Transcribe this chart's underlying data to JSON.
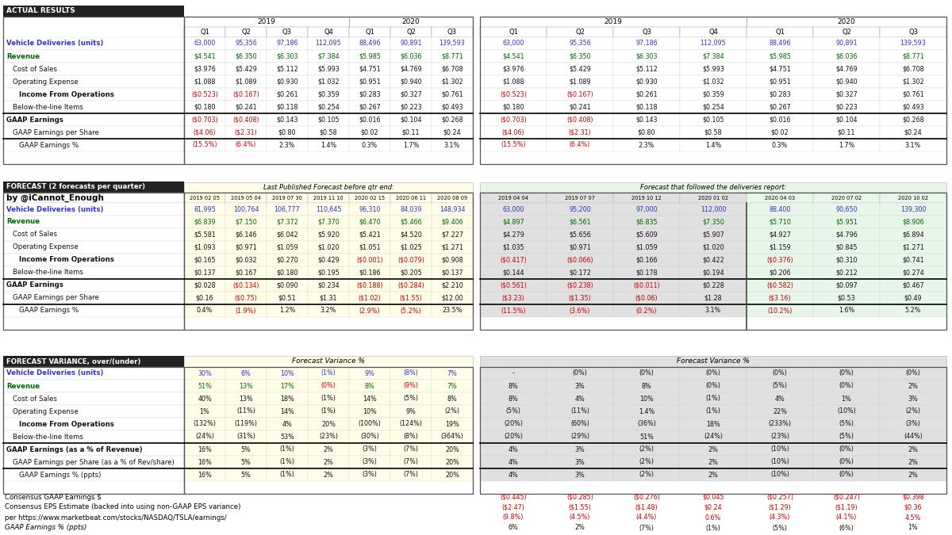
{
  "actual_rows": [
    {
      "label": "Vehicle Deliveries (units)",
      "lcolor": "blue",
      "bold": true,
      "indent": 0,
      "vals": [
        "63,000",
        "95,356",
        "97,186",
        "112,095",
        "88,496",
        "90,891",
        "139,593"
      ],
      "vcolors": [
        "blue",
        "blue",
        "blue",
        "blue",
        "blue",
        "blue",
        "blue"
      ]
    },
    {
      "label": "Revenue",
      "lcolor": "green",
      "bold": true,
      "indent": 0,
      "vals": [
        "$4.541",
        "$6.350",
        "$6.303",
        "$7.384",
        "$5.985",
        "$6.036",
        "$8.771"
      ],
      "vcolors": [
        "green",
        "green",
        "green",
        "green",
        "green",
        "green",
        "green"
      ]
    },
    {
      "label": "Cost of Sales",
      "lcolor": "black",
      "bold": false,
      "indent": 1,
      "vals": [
        "$3.976",
        "$5.429",
        "$5.112",
        "$5.993",
        "$4.751",
        "$4.769",
        "$6.708"
      ],
      "vcolors": [
        "black",
        "black",
        "black",
        "black",
        "black",
        "black",
        "black"
      ]
    },
    {
      "label": "Operating Expense",
      "lcolor": "black",
      "bold": false,
      "indent": 1,
      "vals": [
        "$1.088",
        "$1.089",
        "$0.930",
        "$1.032",
        "$0.951",
        "$0.940",
        "$1.302"
      ],
      "vcolors": [
        "black",
        "black",
        "black",
        "black",
        "black",
        "black",
        "black"
      ]
    },
    {
      "label": "Income From Operations",
      "lcolor": "black",
      "bold": true,
      "indent": 2,
      "vals": [
        "($0.523)",
        "($0.167)",
        "$0.261",
        "$0.359",
        "$0.283",
        "$0.327",
        "$0.761"
      ],
      "vcolors": [
        "red",
        "red",
        "black",
        "black",
        "black",
        "black",
        "black"
      ]
    },
    {
      "label": "Below-the-line Items",
      "lcolor": "black",
      "bold": false,
      "indent": 1,
      "vals": [
        "$0.180",
        "$0.241",
        "$0.118",
        "$0.254",
        "$0.267",
        "$0.223",
        "$0.493"
      ],
      "vcolors": [
        "black",
        "black",
        "black",
        "black",
        "black",
        "black",
        "black"
      ]
    },
    {
      "label": "GAAP Earnings",
      "lcolor": "black",
      "bold": true,
      "indent": 0,
      "vals": [
        "($0.703)",
        "($0.408)",
        "$0.143",
        "$0.105",
        "$0.016",
        "$0.104",
        "$0.268"
      ],
      "vcolors": [
        "red",
        "red",
        "black",
        "black",
        "black",
        "black",
        "black"
      ]
    },
    {
      "label": "GAAP Earnings per Share",
      "lcolor": "black",
      "bold": false,
      "indent": 1,
      "vals": [
        "($4.06)",
        "($2.31)",
        "$0.80",
        "$0.58",
        "$0.02",
        "$0.11",
        "$0.24"
      ],
      "vcolors": [
        "red",
        "red",
        "black",
        "black",
        "black",
        "black",
        "black"
      ]
    },
    {
      "label": "GAAP Earnings %",
      "lcolor": "black",
      "bold": false,
      "indent": 2,
      "vals": [
        "(15.5%)",
        "(6.4%)",
        "2.3%",
        "1.4%",
        "0.3%",
        "1.7%",
        "3.1%"
      ],
      "vcolors": [
        "red",
        "red",
        "black",
        "black",
        "black",
        "black",
        "black"
      ]
    }
  ],
  "forecast_left_rows": [
    {
      "label": "Vehicle Deliveries (units)",
      "lcolor": "blue",
      "bold": true,
      "indent": 0,
      "vals": [
        "81,995",
        "100,764",
        "106,777",
        "110,645",
        "96,310",
        "84,039",
        "148,934"
      ],
      "vcolors": [
        "blue",
        "blue",
        "blue",
        "blue",
        "blue",
        "blue",
        "blue"
      ]
    },
    {
      "label": "Revenue",
      "lcolor": "green",
      "bold": true,
      "indent": 0,
      "vals": [
        "$6.839",
        "$7.150",
        "$7.372",
        "$7.370",
        "$6.470",
        "$5.466",
        "$9.406"
      ],
      "vcolors": [
        "green",
        "green",
        "green",
        "green",
        "green",
        "green",
        "green"
      ]
    },
    {
      "label": "Cost of Sales",
      "lcolor": "black",
      "bold": false,
      "indent": 1,
      "vals": [
        "$5.581",
        "$6.146",
        "$6.042",
        "$5.920",
        "$5.421",
        "$4.520",
        "$7.227"
      ],
      "vcolors": [
        "black",
        "black",
        "black",
        "black",
        "black",
        "black",
        "black"
      ]
    },
    {
      "label": "Operating Expense",
      "lcolor": "black",
      "bold": false,
      "indent": 1,
      "vals": [
        "$1.093",
        "$0.971",
        "$1.059",
        "$1.020",
        "$1.051",
        "$1.025",
        "$1.271"
      ],
      "vcolors": [
        "black",
        "black",
        "black",
        "black",
        "black",
        "black",
        "black"
      ]
    },
    {
      "label": "Income From Operations",
      "lcolor": "black",
      "bold": true,
      "indent": 2,
      "vals": [
        "$0.165",
        "$0.032",
        "$0.270",
        "$0.429",
        "($0.001)",
        "($0.079)",
        "$0.908"
      ],
      "vcolors": [
        "black",
        "black",
        "black",
        "black",
        "red",
        "red",
        "black"
      ]
    },
    {
      "label": "Below-the-line Items",
      "lcolor": "black",
      "bold": false,
      "indent": 1,
      "vals": [
        "$0.137",
        "$0.167",
        "$0.180",
        "$0.195",
        "$0.186",
        "$0.205",
        "$0.137"
      ],
      "vcolors": [
        "black",
        "black",
        "black",
        "black",
        "black",
        "black",
        "black"
      ]
    },
    {
      "label": "GAAP Earnings",
      "lcolor": "black",
      "bold": true,
      "indent": 0,
      "vals": [
        "$0.028",
        "($0.134)",
        "$0.090",
        "$0.234",
        "($0.188)",
        "($0.284)",
        "$2.210"
      ],
      "vcolors": [
        "black",
        "red",
        "black",
        "black",
        "red",
        "red",
        "black"
      ]
    },
    {
      "label": "GAAP Earnings per Share",
      "lcolor": "black",
      "bold": false,
      "indent": 1,
      "vals": [
        "$0.16",
        "($0.75)",
        "$0.51",
        "$1.31",
        "($1.02)",
        "($1.55)",
        "$12.00"
      ],
      "vcolors": [
        "black",
        "red",
        "black",
        "black",
        "red",
        "red",
        "black"
      ]
    },
    {
      "label": "GAAP Earnings %",
      "lcolor": "black",
      "bold": false,
      "indent": 2,
      "vals": [
        "0.4%",
        "(1.9%)",
        "1.2%",
        "3.2%",
        "(2.9%)",
        "(5.2%)",
        "23.5%"
      ],
      "vcolors": [
        "black",
        "red",
        "black",
        "black",
        "red",
        "red",
        "black"
      ]
    }
  ],
  "forecast_right_rows": [
    {
      "vals": [
        "63,000",
        "95,200",
        "97,000",
        "112,000",
        "88,400",
        "90,650",
        "139,300"
      ],
      "vcolors": [
        "blue",
        "blue",
        "blue",
        "blue",
        "blue",
        "blue",
        "blue"
      ]
    },
    {
      "vals": [
        "$4.897",
        "$6.561",
        "$6.835",
        "$7.350",
        "$5.710",
        "$5.951",
        "$8.906"
      ],
      "vcolors": [
        "green",
        "green",
        "green",
        "green",
        "green",
        "green",
        "green"
      ]
    },
    {
      "vals": [
        "$4.279",
        "$5.656",
        "$5.609",
        "$5.907",
        "$4.927",
        "$4.796",
        "$6.894"
      ],
      "vcolors": [
        "black",
        "black",
        "black",
        "black",
        "black",
        "black",
        "black"
      ]
    },
    {
      "vals": [
        "$1.035",
        "$0.971",
        "$1.059",
        "$1.020",
        "$1.159",
        "$0.845",
        "$1.271"
      ],
      "vcolors": [
        "black",
        "black",
        "black",
        "black",
        "black",
        "black",
        "black"
      ]
    },
    {
      "vals": [
        "($0.417)",
        "($0.066)",
        "$0.166",
        "$0.422",
        "($0.376)",
        "$0.310",
        "$0.741"
      ],
      "vcolors": [
        "red",
        "red",
        "black",
        "black",
        "red",
        "black",
        "black"
      ]
    },
    {
      "vals": [
        "$0.144",
        "$0.172",
        "$0.178",
        "$0.194",
        "$0.206",
        "$0.212",
        "$0.274"
      ],
      "vcolors": [
        "black",
        "black",
        "black",
        "black",
        "black",
        "black",
        "black"
      ]
    },
    {
      "vals": [
        "($0.561)",
        "($0.238)",
        "($0.011)",
        "$0.228",
        "($0.582)",
        "$0.097",
        "$0.467"
      ],
      "vcolors": [
        "red",
        "red",
        "red",
        "black",
        "red",
        "black",
        "black"
      ]
    },
    {
      "vals": [
        "($3.23)",
        "($1.35)",
        "($0.06)",
        "$1.28",
        "($3.16)",
        "$0.53",
        "$0.49"
      ],
      "vcolors": [
        "red",
        "red",
        "red",
        "black",
        "red",
        "black",
        "black"
      ]
    },
    {
      "vals": [
        "(11.5%)",
        "(3.6%)",
        "(0.2%)",
        "3.1%",
        "(10.2%)",
        "1.6%",
        "5.2%"
      ],
      "vcolors": [
        "red",
        "red",
        "red",
        "black",
        "red",
        "black",
        "black"
      ]
    }
  ],
  "variance_left_rows": [
    {
      "label": "Vehicle Deliveries (units)",
      "lcolor": "blue",
      "bold": true,
      "indent": 0,
      "vals": [
        "30%",
        "6%",
        "10%",
        "(1%)",
        "9%",
        "(8%)",
        "7%"
      ],
      "vcolors": [
        "blue",
        "blue",
        "blue",
        "blue",
        "blue",
        "blue",
        "blue"
      ]
    },
    {
      "label": "Revenue",
      "lcolor": "green",
      "bold": true,
      "indent": 0,
      "vals": [
        "51%",
        "13%",
        "17%",
        "(0%)",
        "8%",
        "(9%)",
        "7%"
      ],
      "vcolors": [
        "green",
        "green",
        "green",
        "red",
        "green",
        "red",
        "green"
      ]
    },
    {
      "label": "Cost of Sales",
      "lcolor": "black",
      "bold": false,
      "indent": 1,
      "vals": [
        "40%",
        "13%",
        "18%",
        "(1%)",
        "14%",
        "(5%)",
        "8%"
      ],
      "vcolors": [
        "black",
        "black",
        "black",
        "black",
        "black",
        "black",
        "black"
      ]
    },
    {
      "label": "Operating Expense",
      "lcolor": "black",
      "bold": false,
      "indent": 1,
      "vals": [
        "1%",
        "(11%)",
        "14%",
        "(1%)",
        "10%",
        "9%",
        "(2%)"
      ],
      "vcolors": [
        "black",
        "black",
        "black",
        "black",
        "black",
        "black",
        "black"
      ]
    },
    {
      "label": "Income From Operations",
      "lcolor": "black",
      "bold": true,
      "indent": 2,
      "vals": [
        "(132%)",
        "(119%)",
        "4%",
        "20%",
        "(100%)",
        "(124%)",
        "19%"
      ],
      "vcolors": [
        "black",
        "black",
        "black",
        "black",
        "black",
        "black",
        "black"
      ]
    },
    {
      "label": "Below-the-line Items",
      "lcolor": "black",
      "bold": false,
      "indent": 1,
      "vals": [
        "(24%)",
        "(31%)",
        "53%",
        "(23%)",
        "(30%)",
        "(8%)",
        "(364%)"
      ],
      "vcolors": [
        "black",
        "black",
        "black",
        "black",
        "black",
        "black",
        "black"
      ]
    },
    {
      "label": "GAAP Earnings (as a % of Revenue)",
      "lcolor": "black",
      "bold": true,
      "indent": 0,
      "vals": [
        "16%",
        "5%",
        "(1%)",
        "2%",
        "(3%)",
        "(7%)",
        "20%"
      ],
      "vcolors": [
        "black",
        "black",
        "black",
        "black",
        "black",
        "black",
        "black"
      ]
    },
    {
      "label": "GAAP Earnings per Share (as a % of Rev/share)",
      "lcolor": "black",
      "bold": false,
      "indent": 1,
      "vals": [
        "16%",
        "5%",
        "(1%)",
        "2%",
        "(3%)",
        "(7%)",
        "20%"
      ],
      "vcolors": [
        "black",
        "black",
        "black",
        "black",
        "black",
        "black",
        "black"
      ]
    },
    {
      "label": "GAAP Earnings % (ppts)",
      "lcolor": "black",
      "bold": false,
      "indent": 2,
      "vals": [
        "16%",
        "5%",
        "(1%)",
        "2%",
        "(3%)",
        "(7%)",
        "20%"
      ],
      "vcolors": [
        "black",
        "black",
        "black",
        "black",
        "black",
        "black",
        "black"
      ]
    }
  ],
  "variance_right_rows": [
    {
      "vals": [
        "-",
        "(0%)",
        "(0%)",
        "(0%)",
        "(0%)",
        "(0%)",
        "(0%)"
      ],
      "vcolors": [
        "black",
        "black",
        "black",
        "black",
        "black",
        "black",
        "black"
      ]
    },
    {
      "vals": [
        "8%",
        "3%",
        "8%",
        "(0%)",
        "(5%)",
        "(0%)",
        "2%"
      ],
      "vcolors": [
        "black",
        "black",
        "black",
        "black",
        "black",
        "black",
        "black"
      ]
    },
    {
      "vals": [
        "8%",
        "4%",
        "10%",
        "(1%)",
        "4%",
        "1%",
        "3%"
      ],
      "vcolors": [
        "black",
        "black",
        "black",
        "black",
        "black",
        "black",
        "black"
      ]
    },
    {
      "vals": [
        "(5%)",
        "(11%)",
        "1.4%",
        "(1%)",
        "22%",
        "(10%)",
        "(2%)"
      ],
      "vcolors": [
        "black",
        "black",
        "black",
        "black",
        "black",
        "black",
        "black"
      ]
    },
    {
      "vals": [
        "(20%)",
        "(60%)",
        "(36%)",
        "18%",
        "(233%)",
        "(5%)",
        "(3%)"
      ],
      "vcolors": [
        "black",
        "black",
        "black",
        "black",
        "black",
        "black",
        "black"
      ]
    },
    {
      "vals": [
        "(20%)",
        "(29%)",
        "51%",
        "(24%)",
        "(23%)",
        "(5%)",
        "(44%)"
      ],
      "vcolors": [
        "black",
        "black",
        "black",
        "black",
        "black",
        "black",
        "black"
      ]
    },
    {
      "vals": [
        "4%",
        "3%",
        "(2%)",
        "2%",
        "(10%)",
        "(0%)",
        "2%"
      ],
      "vcolors": [
        "black",
        "black",
        "black",
        "black",
        "black",
        "black",
        "black"
      ]
    },
    {
      "vals": [
        "4%",
        "3%",
        "(2%)",
        "2%",
        "(10%)",
        "(0%)",
        "2%"
      ],
      "vcolors": [
        "black",
        "black",
        "black",
        "black",
        "black",
        "black",
        "black"
      ]
    },
    {
      "vals": [
        "4%",
        "3%",
        "(2%)",
        "2%",
        "(10%)",
        "(0%)",
        "2%"
      ],
      "vcolors": [
        "black",
        "black",
        "black",
        "black",
        "black",
        "black",
        "black"
      ]
    }
  ],
  "actual_left_date_cols": [
    "Q1",
    "Q2",
    "Q3",
    "Q4",
    "Q1",
    "Q2",
    "Q3"
  ],
  "actual_year_spans": [
    [
      "2019",
      0,
      4
    ],
    [
      "2020",
      4,
      3
    ]
  ],
  "forecast_left_date_cols": [
    "2019 02 05",
    "2019 05 04",
    "2019 07 30",
    "2019 11 10",
    "2020 02 15",
    "2020 06 11",
    "2020 08 09"
  ],
  "forecast_right_date_cols": [
    "2019 04 04",
    "2019 07 07",
    "2019 10 12",
    "2020 01 02",
    "2020 04 03",
    "2020 07 02",
    "2020 10 02"
  ],
  "footnote_lines": [
    "Consensus GAAP Earnings $",
    "Consensus EPS Estimate (backed into using non-GAAP EPS variance)",
    "per https://www.marketbeat.com/stocks/NASDAQ/TSLA/earnings/",
    "    GAAP Earnings % (ppts)"
  ],
  "fn_right_row1": [
    "($0.445)",
    "($0.285)",
    "($0.276)",
    "$0.045",
    "($0.257)",
    "($0.247)",
    "$0.398"
  ],
  "fn_right_row2": [
    "($2.47)",
    "($1.55)",
    "($1.48)",
    "$0.24",
    "($1.29)",
    "($1.19)",
    "$0.36"
  ],
  "fn_right_row3": [
    "(9.8%)",
    "(4.5%)",
    "(4.4%)",
    "0.6%",
    "(4.3%)",
    "(4.1%)",
    "4.5%"
  ],
  "fn_right_row4": [
    "6%",
    "2%",
    "(7%)",
    "(1%)",
    "(5%)",
    "(6%)",
    "1%"
  ]
}
